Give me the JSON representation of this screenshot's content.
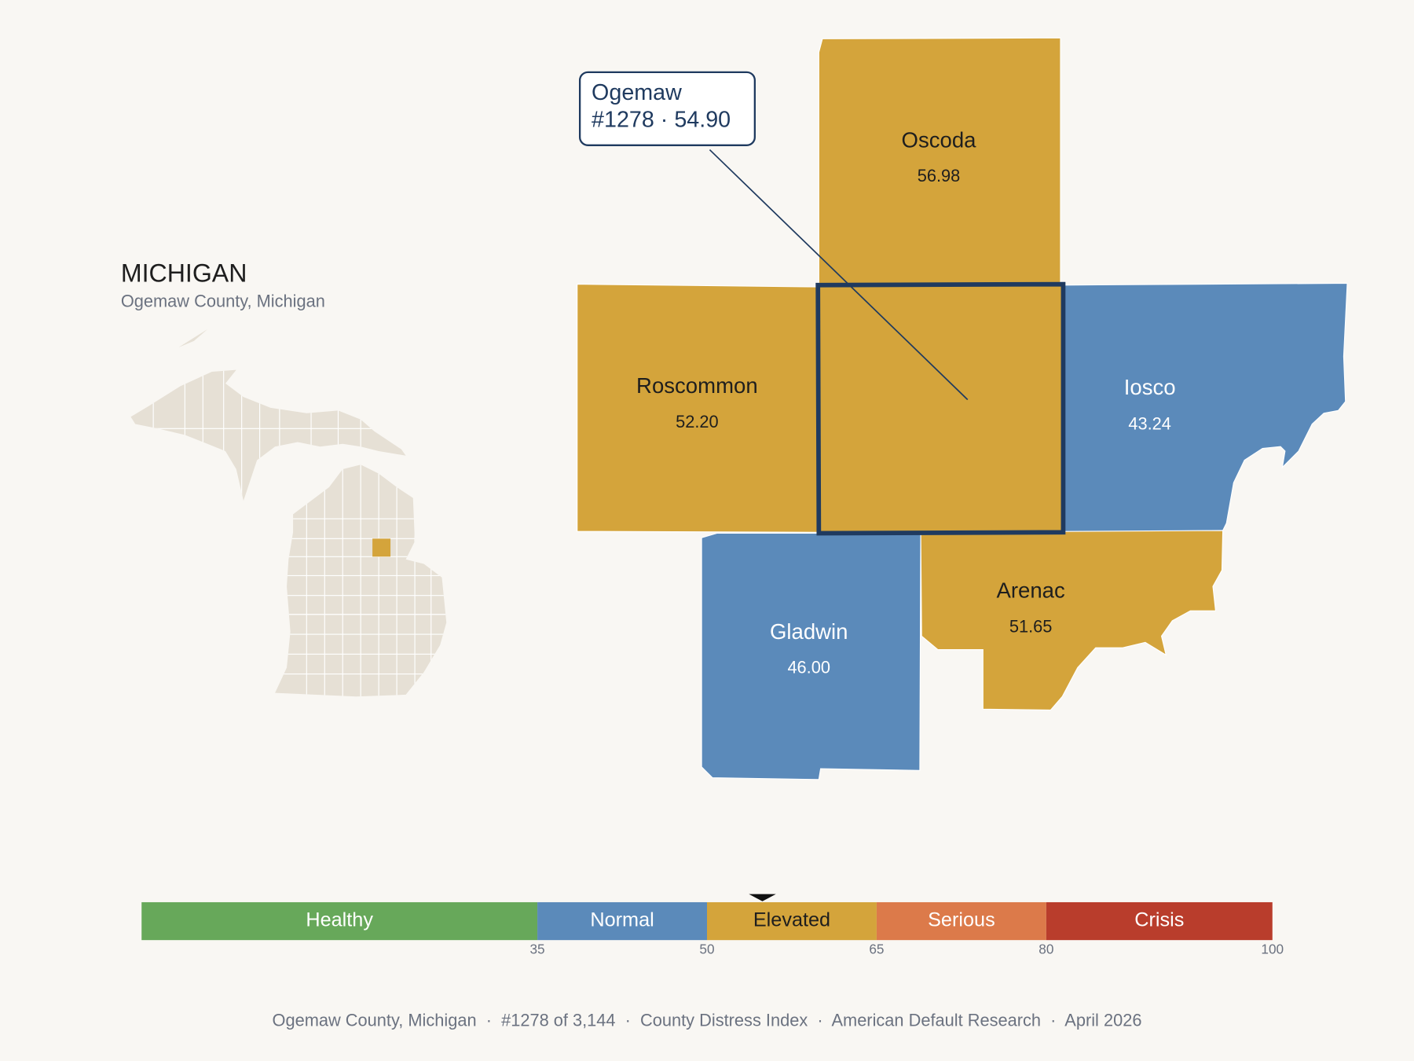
{
  "state": {
    "title": "MICHIGAN",
    "subtitle": "Ogemaw County, Michigan"
  },
  "counties": [
    {
      "name": "Ogemaw",
      "value": 54.9
    },
    {
      "name": "Oscoda",
      "value": 56.98,
      "value_label": "56.98"
    },
    {
      "name": "Roscommon",
      "value": 52.2,
      "value_label": "52.20"
    },
    {
      "name": "Iosco",
      "value": 43.24,
      "value_label": "43.24"
    },
    {
      "name": "Gladwin",
      "value": 46.0,
      "value_label": "46.00"
    },
    {
      "name": "Arenac",
      "value": 51.65,
      "value_label": "51.65"
    }
  ],
  "callout": {
    "detail": "#1278 · 54.90"
  },
  "scale": {
    "min": 0,
    "max": 100,
    "ticks": [
      35,
      50,
      65,
      80,
      100
    ],
    "bands": [
      {
        "name": "Healthy",
        "to": 35,
        "color": "#67a85a",
        "text_color": "#ffffff"
      },
      {
        "name": "Normal",
        "to": 50,
        "color": "#5b8aba",
        "text_color": "#ffffff"
      },
      {
        "name": "Elevated",
        "to": 65,
        "color": "#d4a43b",
        "text_color": "#1e1e1e"
      },
      {
        "name": "Serious",
        "to": 80,
        "color": "#dc7a4a",
        "text_color": "#ffffff"
      },
      {
        "name": "Crisis",
        "to": 100,
        "color": "#b93d2c",
        "text_color": "#ffffff"
      }
    ]
  },
  "footer": "Ogemaw County, Michigan  ·  #1278 of 3,144  ·  County Distress Index  ·  American Default Research  ·  April 2026"
}
